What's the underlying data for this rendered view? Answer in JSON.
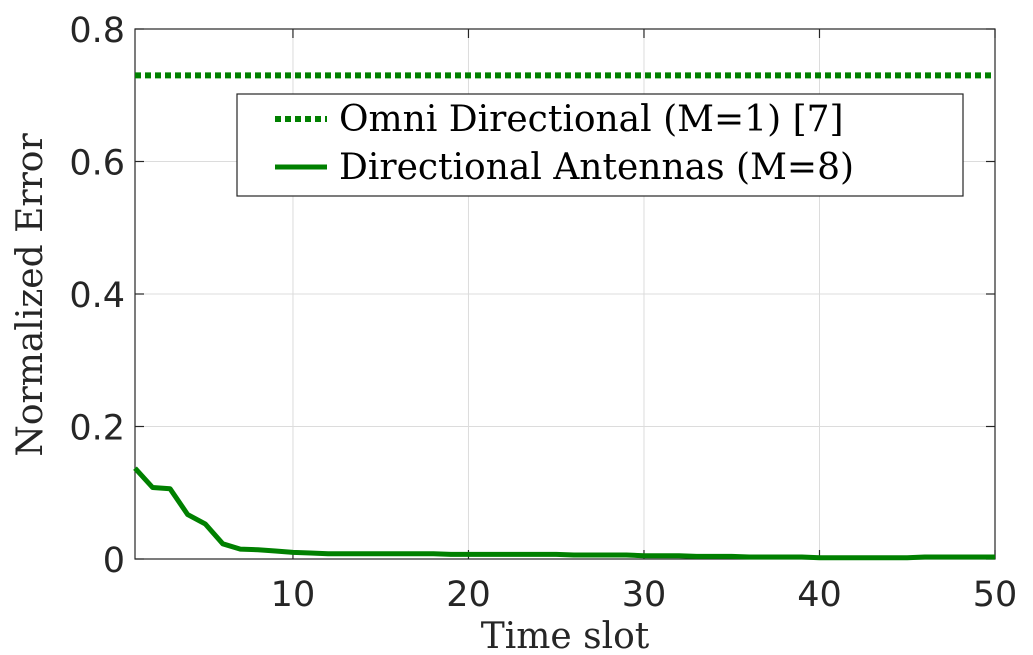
{
  "chart_data": {
    "type": "line",
    "xlabel": "Time slot",
    "ylabel": "Normalized Error",
    "xlim": [
      1,
      50
    ],
    "ylim": [
      0,
      0.8
    ],
    "xticks": [
      10,
      20,
      30,
      40,
      50
    ],
    "yticks": [
      0,
      0.2,
      0.4,
      0.6,
      0.8
    ],
    "xtick_labels": [
      "10",
      "20",
      "30",
      "40",
      "50"
    ],
    "ytick_labels": [
      "0",
      "0.2",
      "0.4",
      "0.6",
      "0.8"
    ],
    "grid": true,
    "legend_position": "upper-right",
    "series": [
      {
        "name": "Omni Directional (M=1) [7]",
        "style": "dotted",
        "color": "#008000",
        "x": [
          1,
          50
        ],
        "y": [
          0.73,
          0.73
        ]
      },
      {
        "name": "Directional Antennas (M=8)",
        "style": "solid",
        "color": "#008000",
        "x": [
          1,
          2,
          3,
          4,
          5,
          6,
          7,
          8,
          9,
          10,
          11,
          12,
          13,
          14,
          15,
          16,
          17,
          18,
          19,
          20,
          21,
          22,
          23,
          24,
          25,
          26,
          27,
          28,
          29,
          30,
          31,
          32,
          33,
          34,
          35,
          36,
          37,
          38,
          39,
          40,
          41,
          42,
          43,
          44,
          45,
          46,
          47,
          48,
          49,
          50
        ],
        "y": [
          0.137,
          0.108,
          0.106,
          0.067,
          0.053,
          0.023,
          0.015,
          0.014,
          0.012,
          0.01,
          0.009,
          0.008,
          0.008,
          0.008,
          0.008,
          0.008,
          0.008,
          0.008,
          0.007,
          0.007,
          0.007,
          0.007,
          0.007,
          0.007,
          0.007,
          0.006,
          0.006,
          0.006,
          0.006,
          0.005,
          0.005,
          0.005,
          0.004,
          0.004,
          0.004,
          0.003,
          0.003,
          0.003,
          0.003,
          0.002,
          0.002,
          0.002,
          0.002,
          0.002,
          0.002,
          0.003,
          0.003,
          0.003,
          0.003,
          0.003
        ]
      }
    ]
  }
}
